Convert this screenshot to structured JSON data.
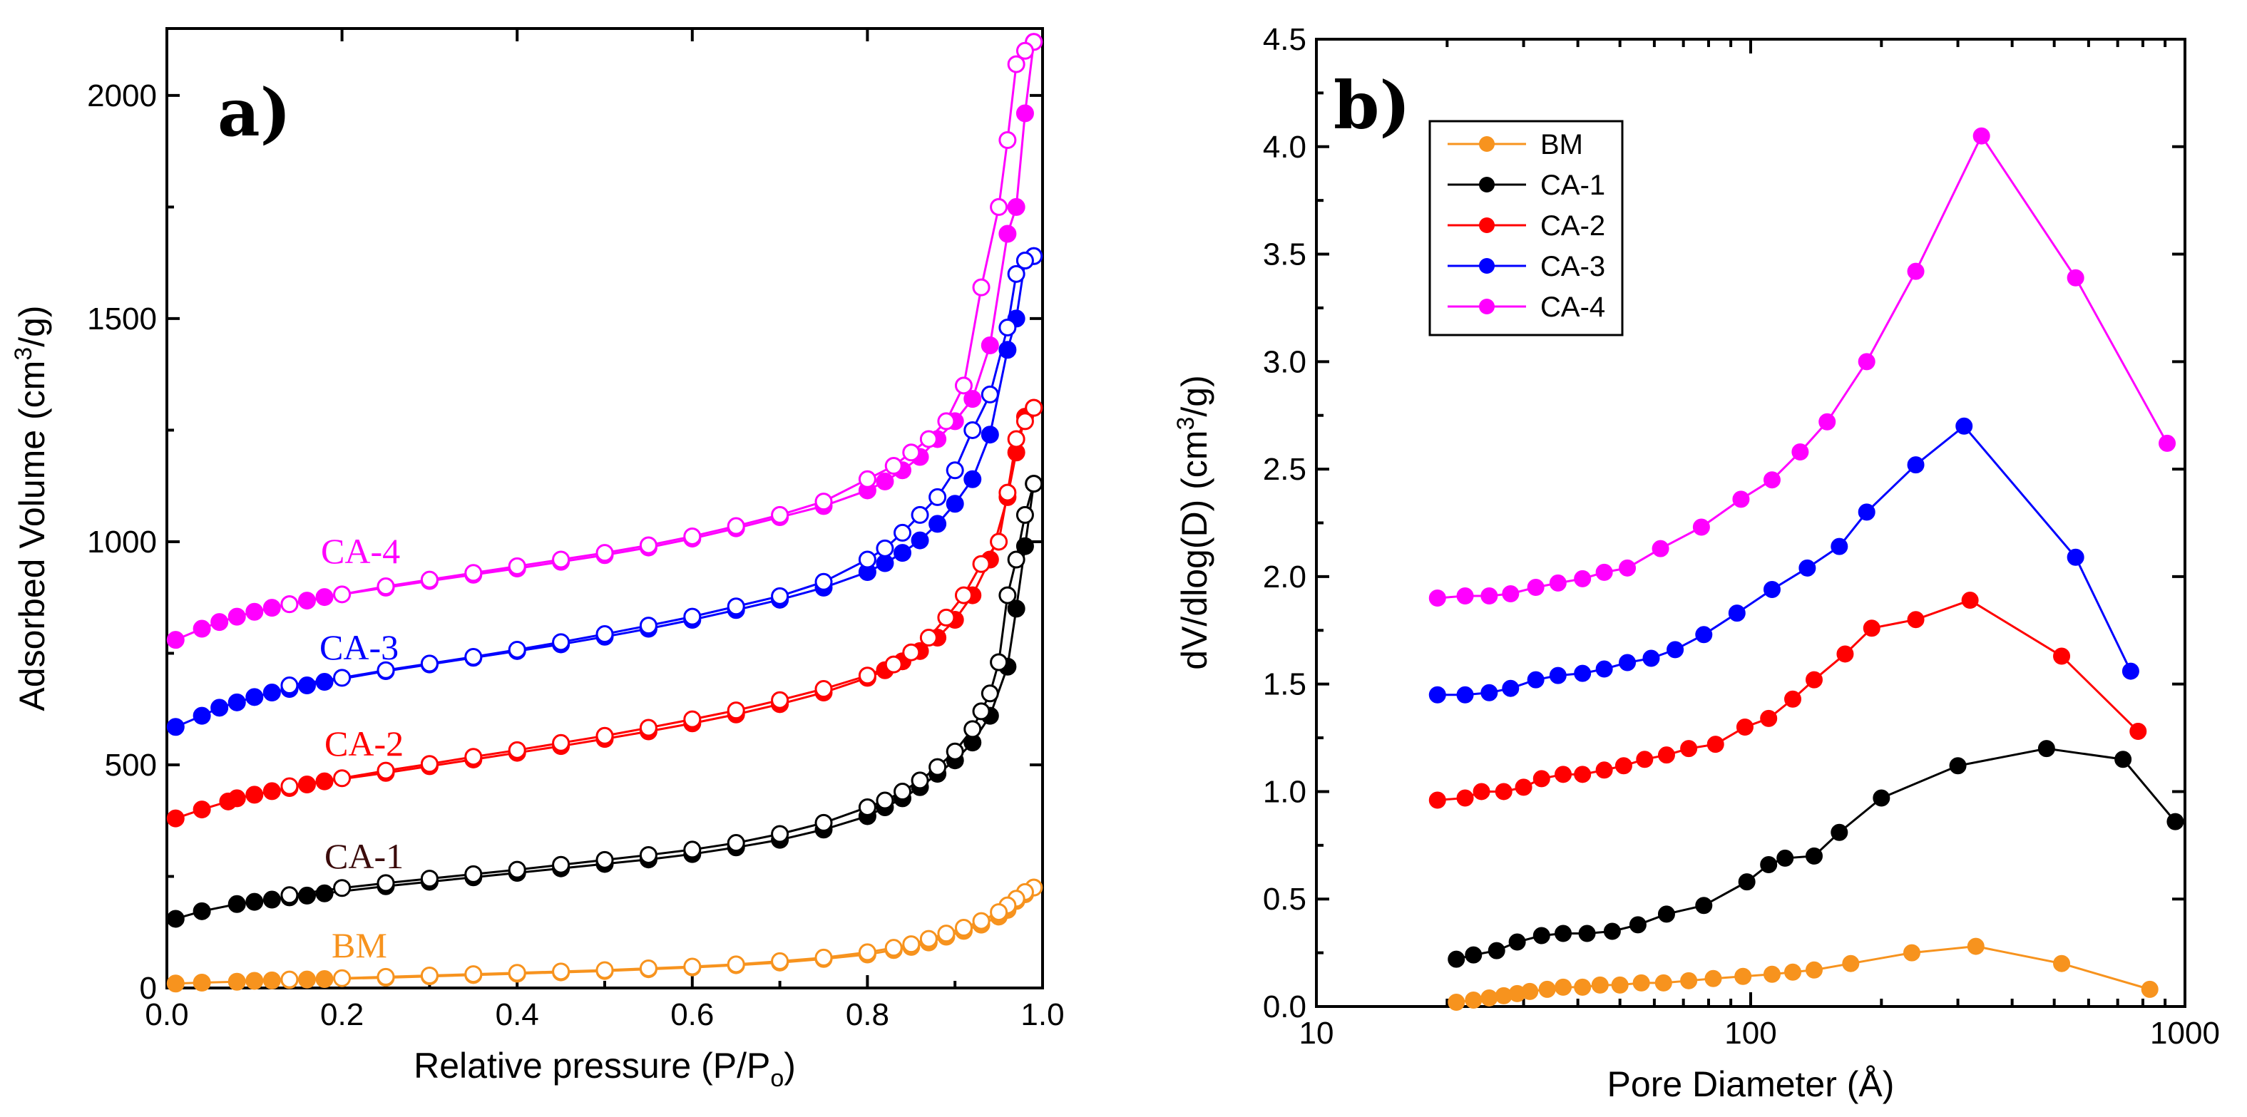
{
  "chart_data": [
    {
      "type": "scatter",
      "panel_label": "a)",
      "xlabel_main": "Relative pressure (P/P",
      "xlabel_sub": "o",
      "xlabel_tail": ")",
      "ylabel_main": "Adsorbed Volume (cm",
      "ylabel_sup": "3",
      "ylabel_tail": "/g)",
      "xlim": [
        0.0,
        1.0
      ],
      "ylim": [
        0,
        2150
      ],
      "xticks": [
        "0.0",
        "0.2",
        "0.4",
        "0.6",
        "0.8",
        "1.0"
      ],
      "yticks": [
        "0",
        "500",
        "1000",
        "1500",
        "2000"
      ],
      "grid": false,
      "series": [
        {
          "name": "BM",
          "label": "BM",
          "color": "#f7931e",
          "adsorption": {
            "x": [
              0.01,
              0.04,
              0.08,
              0.1,
              0.12,
              0.14,
              0.16,
              0.18,
              0.25,
              0.3,
              0.35,
              0.4,
              0.45,
              0.5,
              0.55,
              0.6,
              0.65,
              0.7,
              0.75,
              0.8,
              0.83,
              0.85,
              0.87,
              0.89,
              0.91,
              0.93,
              0.95,
              0.96,
              0.97,
              0.98,
              0.99
            ],
            "y": [
              10,
              12,
              14,
              16,
              17,
              18,
              19,
              20,
              23,
              26,
              29,
              32,
              35,
              38,
              42,
              46,
              51,
              57,
              65,
              75,
              85,
              92,
              102,
              115,
              128,
              142,
              160,
              175,
              195,
              210,
              225
            ]
          },
          "desorption": {
            "x": [
              0.99,
              0.98,
              0.97,
              0.96,
              0.95,
              0.93,
              0.91,
              0.89,
              0.87,
              0.85,
              0.83,
              0.8,
              0.75,
              0.7,
              0.65,
              0.6,
              0.55,
              0.5,
              0.45,
              0.4,
              0.35,
              0.3,
              0.25,
              0.2,
              0.14
            ],
            "y": [
              225,
              215,
              200,
              185,
              170,
              150,
              135,
              122,
              110,
              98,
              90,
              80,
              68,
              60,
              53,
              48,
              44,
              40,
              37,
              34,
              31,
              28,
              25,
              22,
              19
            ]
          }
        },
        {
          "name": "CA-1",
          "label": "CA-1",
          "color": "#000000",
          "label_color": "#3b0b0b",
          "adsorption": {
            "x": [
              0.01,
              0.04,
              0.08,
              0.1,
              0.12,
              0.14,
              0.16,
              0.18,
              0.25,
              0.3,
              0.35,
              0.4,
              0.45,
              0.5,
              0.55,
              0.6,
              0.65,
              0.7,
              0.75,
              0.8,
              0.82,
              0.84,
              0.86,
              0.88,
              0.9,
              0.92,
              0.94,
              0.96,
              0.97,
              0.98,
              0.99
            ],
            "y": [
              155,
              172,
              188,
              193,
              198,
              203,
              207,
              212,
              228,
              238,
              248,
              258,
              268,
              278,
              288,
              300,
              315,
              332,
              355,
              385,
              405,
              425,
              450,
              480,
              510,
              550,
              610,
              720,
              850,
              990,
              1130
            ]
          },
          "desorption": {
            "x": [
              0.99,
              0.98,
              0.97,
              0.96,
              0.95,
              0.94,
              0.93,
              0.92,
              0.9,
              0.88,
              0.86,
              0.84,
              0.82,
              0.8,
              0.75,
              0.7,
              0.65,
              0.6,
              0.55,
              0.5,
              0.45,
              0.4,
              0.35,
              0.3,
              0.25,
              0.2,
              0.14
            ],
            "y": [
              1130,
              1060,
              960,
              880,
              730,
              660,
              620,
              580,
              530,
              495,
              465,
              440,
              420,
              405,
              370,
              345,
              325,
              310,
              298,
              287,
              276,
              265,
              255,
              245,
              235,
              224,
              208
            ]
          }
        },
        {
          "name": "CA-2",
          "label": "CA-2",
          "color": "#ff0000",
          "adsorption": {
            "x": [
              0.01,
              0.04,
              0.07,
              0.08,
              0.1,
              0.12,
              0.14,
              0.16,
              0.18,
              0.25,
              0.3,
              0.35,
              0.4,
              0.45,
              0.5,
              0.55,
              0.6,
              0.65,
              0.7,
              0.75,
              0.8,
              0.82,
              0.84,
              0.86,
              0.88,
              0.9,
              0.92,
              0.94,
              0.96,
              0.97,
              0.98,
              0.99
            ],
            "y": [
              380,
              400,
              418,
              425,
              433,
              441,
              448,
              456,
              463,
              482,
              497,
              512,
              527,
              542,
              558,
              575,
              593,
              613,
              636,
              662,
              695,
              712,
              732,
              755,
              785,
              825,
              880,
              960,
              1100,
              1200,
              1280,
              1300
            ]
          },
          "desorption": {
            "x": [
              0.99,
              0.98,
              0.97,
              0.96,
              0.95,
              0.93,
              0.91,
              0.89,
              0.87,
              0.85,
              0.83,
              0.8,
              0.75,
              0.7,
              0.65,
              0.6,
              0.55,
              0.5,
              0.45,
              0.4,
              0.35,
              0.3,
              0.25,
              0.2,
              0.14
            ],
            "y": [
              1300,
              1270,
              1230,
              1110,
              1000,
              950,
              880,
              830,
              785,
              752,
              725,
              700,
              670,
              645,
              622,
              602,
              583,
              565,
              549,
              533,
              518,
              502,
              487,
              470,
              452
            ]
          }
        },
        {
          "name": "CA-3",
          "label": "CA-3",
          "color": "#0000ff",
          "adsorption": {
            "x": [
              0.01,
              0.04,
              0.06,
              0.08,
              0.1,
              0.12,
              0.14,
              0.16,
              0.18,
              0.25,
              0.3,
              0.35,
              0.4,
              0.45,
              0.5,
              0.55,
              0.6,
              0.65,
              0.7,
              0.75,
              0.8,
              0.82,
              0.84,
              0.86,
              0.88,
              0.9,
              0.92,
              0.94,
              0.96,
              0.97,
              0.98,
              0.99
            ],
            "y": [
              585,
              610,
              628,
              640,
              652,
              662,
              670,
              678,
              686,
              710,
              725,
              740,
              755,
              770,
              787,
              805,
              825,
              847,
              870,
              897,
              932,
              952,
              975,
              1003,
              1040,
              1085,
              1140,
              1240,
              1430,
              1500,
              1630,
              1640
            ]
          },
          "desorption": {
            "x": [
              0.99,
              0.98,
              0.97,
              0.96,
              0.94,
              0.92,
              0.9,
              0.88,
              0.86,
              0.84,
              0.82,
              0.8,
              0.75,
              0.7,
              0.65,
              0.6,
              0.55,
              0.5,
              0.45,
              0.4,
              0.35,
              0.3,
              0.25,
              0.2,
              0.14
            ],
            "y": [
              1640,
              1630,
              1600,
              1480,
              1330,
              1250,
              1160,
              1100,
              1060,
              1020,
              985,
              960,
              910,
              878,
              855,
              832,
              812,
              793,
              775,
              758,
              742,
              727,
              712,
              695,
              678
            ]
          }
        },
        {
          "name": "CA-4",
          "label": "CA-4",
          "color": "#ff00ff",
          "adsorption": {
            "x": [
              0.01,
              0.04,
              0.06,
              0.08,
              0.1,
              0.12,
              0.14,
              0.16,
              0.18,
              0.25,
              0.3,
              0.35,
              0.4,
              0.45,
              0.5,
              0.55,
              0.6,
              0.65,
              0.7,
              0.75,
              0.8,
              0.82,
              0.84,
              0.86,
              0.88,
              0.9,
              0.92,
              0.94,
              0.96,
              0.97,
              0.98,
              0.99
            ],
            "y": [
              780,
              805,
              820,
              832,
              843,
              852,
              860,
              868,
              876,
              897,
              912,
              926,
              940,
              955,
              970,
              987,
              1007,
              1030,
              1055,
              1080,
              1115,
              1135,
              1160,
              1190,
              1230,
              1270,
              1320,
              1440,
              1690,
              1750,
              1960,
              2120
            ]
          },
          "desorption": {
            "x": [
              0.99,
              0.98,
              0.97,
              0.96,
              0.95,
              0.93,
              0.91,
              0.89,
              0.87,
              0.85,
              0.83,
              0.8,
              0.75,
              0.7,
              0.65,
              0.6,
              0.55,
              0.5,
              0.45,
              0.4,
              0.35,
              0.3,
              0.25,
              0.2,
              0.14
            ],
            "y": [
              2120,
              2100,
              2070,
              1900,
              1750,
              1570,
              1350,
              1270,
              1230,
              1200,
              1170,
              1140,
              1090,
              1060,
              1035,
              1012,
              992,
              975,
              960,
              945,
              930,
              915,
              900,
              882,
              860
            ]
          }
        }
      ]
    },
    {
      "type": "line",
      "panel_label": "b)",
      "xlabel": "Pore Diameter (Å)",
      "ylabel_main": "dV/dlog(D) (cm",
      "ylabel_sup": "3",
      "ylabel_tail": "/g)",
      "xscale": "log",
      "xlim": [
        10,
        1000
      ],
      "ylim": [
        0.0,
        4.5
      ],
      "xticks": [
        "10",
        "100",
        "1000"
      ],
      "yticks": [
        "0.0",
        "0.5",
        "1.0",
        "1.5",
        "2.0",
        "2.5",
        "3.0",
        "3.5",
        "4.0",
        "4.5"
      ],
      "legend_position": "top-left",
      "grid": false,
      "series": [
        {
          "name": "BM",
          "color": "#f7931e",
          "x": [
            21,
            23,
            25,
            27,
            29,
            31,
            34,
            37,
            41,
            45,
            50,
            56,
            63,
            72,
            82,
            96,
            112,
            125,
            140,
            170,
            235,
            330,
            520,
            830
          ],
          "y": [
            0.02,
            0.03,
            0.04,
            0.05,
            0.06,
            0.07,
            0.08,
            0.09,
            0.09,
            0.1,
            0.1,
            0.11,
            0.11,
            0.12,
            0.13,
            0.14,
            0.15,
            0.16,
            0.17,
            0.2,
            0.25,
            0.28,
            0.2,
            0.08
          ]
        },
        {
          "name": "CA-1",
          "color": "#000000",
          "x": [
            21,
            23,
            26,
            29,
            33,
            37,
            42,
            48,
            55,
            64,
            78,
            98,
            110,
            120,
            140,
            160,
            200,
            300,
            480,
            720,
            950
          ],
          "y": [
            0.22,
            0.24,
            0.26,
            0.3,
            0.33,
            0.34,
            0.34,
            0.35,
            0.38,
            0.43,
            0.47,
            0.58,
            0.66,
            0.69,
            0.7,
            0.81,
            0.97,
            1.12,
            1.2,
            1.15,
            0.86
          ]
        },
        {
          "name": "CA-2",
          "color": "#ff0000",
          "x": [
            19,
            22,
            24,
            27,
            30,
            33,
            37,
            41,
            46,
            51,
            57,
            64,
            72,
            83,
            97,
            110,
            125,
            140,
            165,
            190,
            240,
            320,
            520,
            780
          ],
          "y": [
            0.96,
            0.97,
            1.0,
            1.0,
            1.02,
            1.06,
            1.08,
            1.08,
            1.1,
            1.12,
            1.15,
            1.17,
            1.2,
            1.22,
            1.3,
            1.34,
            1.43,
            1.52,
            1.64,
            1.76,
            1.8,
            1.89,
            1.63,
            1.28
          ]
        },
        {
          "name": "CA-3",
          "color": "#0000ff",
          "x": [
            19,
            22,
            25,
            28,
            32,
            36,
            41,
            46,
            52,
            59,
            67,
            78,
            93,
            112,
            135,
            160,
            185,
            240,
            310,
            560,
            750
          ],
          "y": [
            1.45,
            1.45,
            1.46,
            1.48,
            1.52,
            1.54,
            1.55,
            1.57,
            1.6,
            1.62,
            1.66,
            1.73,
            1.83,
            1.94,
            2.04,
            2.14,
            2.3,
            2.52,
            2.7,
            2.09,
            1.56
          ]
        },
        {
          "name": "CA-4",
          "color": "#ff00ff",
          "x": [
            19,
            22,
            25,
            28,
            32,
            36,
            41,
            46,
            52,
            62,
            77,
            95,
            112,
            130,
            150,
            185,
            240,
            340,
            560,
            910
          ],
          "y": [
            1.9,
            1.91,
            1.91,
            1.92,
            1.95,
            1.97,
            1.99,
            2.02,
            2.04,
            2.13,
            2.23,
            2.36,
            2.45,
            2.58,
            2.72,
            3.0,
            3.42,
            4.05,
            3.39,
            2.62
          ]
        }
      ]
    }
  ]
}
